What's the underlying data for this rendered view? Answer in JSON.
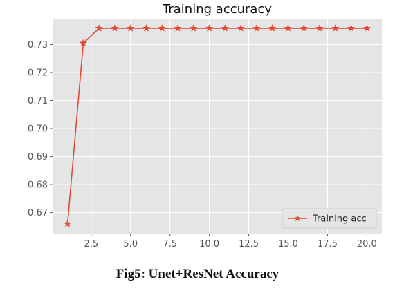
{
  "caption": "Fig5: Unet+ResNet Accuracy",
  "chart_data": {
    "type": "line",
    "title": "Training accuracy",
    "xlabel": "",
    "ylabel": "",
    "x": [
      1,
      2,
      3,
      4,
      5,
      6,
      7,
      8,
      9,
      10,
      11,
      12,
      13,
      14,
      15,
      16,
      17,
      18,
      19,
      20
    ],
    "series": [
      {
        "name": "Training acc",
        "marker": "star",
        "color": "#e24a33",
        "values": [
          0.666,
          0.7305,
          0.7358,
          0.7358,
          0.7358,
          0.7358,
          0.7358,
          0.7358,
          0.7358,
          0.7358,
          0.7358,
          0.7358,
          0.7358,
          0.7358,
          0.7358,
          0.7358,
          0.7358,
          0.7358,
          0.7358,
          0.7358
        ]
      }
    ],
    "xlim": [
      0.05,
      20.95
    ],
    "ylim": [
      0.6625,
      0.739
    ],
    "xticks": [
      "2.5",
      "5.0",
      "7.5",
      "10.0",
      "12.5",
      "15.0",
      "17.5",
      "20.0"
    ],
    "yticks": [
      "0.67",
      "0.68",
      "0.69",
      "0.70",
      "0.71",
      "0.72",
      "0.73"
    ],
    "grid": true,
    "legend_position": "lower-right",
    "background": "#e5e5e5"
  }
}
